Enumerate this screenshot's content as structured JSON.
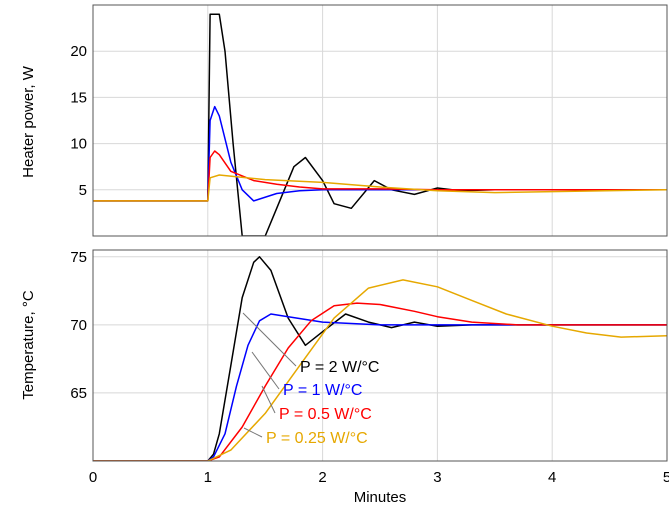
{
  "chart_data": [
    {
      "type": "line",
      "ylabel": "Heater power, W",
      "xlim": [
        0,
        5
      ],
      "ylim": [
        0,
        25
      ],
      "yticks": [
        5,
        10,
        15,
        20
      ],
      "grid": true,
      "series": [
        {
          "color": "#000000",
          "x": [
            0,
            1,
            1.02,
            1.1,
            1.15,
            1.22,
            1.3,
            1.5,
            1.6,
            1.75,
            1.85,
            2.0,
            2.1,
            2.25,
            2.45,
            2.6,
            2.8,
            3.0,
            3.2,
            3.5,
            4.0,
            5.0
          ],
          "y": [
            3.8,
            3.8,
            24,
            24,
            20,
            10,
            0,
            0,
            3,
            7.5,
            8.5,
            6,
            3.5,
            3,
            6,
            5,
            4.5,
            5.2,
            4.9,
            5,
            5,
            5
          ]
        },
        {
          "color": "#0000ff",
          "x": [
            0,
            1,
            1.02,
            1.06,
            1.1,
            1.2,
            1.3,
            1.4,
            1.6,
            1.8,
            2.0,
            2.5,
            3.0,
            5.0
          ],
          "y": [
            3.8,
            3.8,
            12.5,
            14,
            13,
            8,
            5,
            3.8,
            4.6,
            4.9,
            5,
            5,
            5,
            5
          ]
        },
        {
          "color": "#ff0000",
          "x": [
            0,
            1,
            1.02,
            1.06,
            1.1,
            1.2,
            1.4,
            1.6,
            1.8,
            2.0,
            2.5,
            3.0,
            5.0
          ],
          "y": [
            3.8,
            3.8,
            8.5,
            9.2,
            8.8,
            7,
            6,
            5.6,
            5.3,
            5.1,
            5.1,
            5,
            5
          ]
        },
        {
          "color": "#e6a800",
          "x": [
            0,
            1,
            1.02,
            1.1,
            1.5,
            2.0,
            2.5,
            3.0,
            3.5,
            4.0,
            5.0
          ],
          "y": [
            3.8,
            3.8,
            6.3,
            6.6,
            6.1,
            5.8,
            5.3,
            4.9,
            4.7,
            4.8,
            5
          ]
        }
      ]
    },
    {
      "type": "line",
      "xlabel": "Minutes",
      "ylabel": "Temperature, °C",
      "xlim": [
        0,
        5
      ],
      "ylim": [
        60,
        75.5
      ],
      "xticks": [
        0,
        1,
        2,
        3,
        4,
        5
      ],
      "yticks": [
        65,
        70,
        75
      ],
      "grid": true,
      "series": [
        {
          "name": "P = 2 W/°C",
          "color": "#000000",
          "x": [
            0,
            1,
            1.05,
            1.1,
            1.2,
            1.3,
            1.4,
            1.45,
            1.55,
            1.7,
            1.85,
            2.0,
            2.2,
            2.4,
            2.6,
            2.8,
            3.0,
            3.3,
            3.6,
            4.0,
            5.0
          ],
          "y": [
            60,
            60,
            60.5,
            62,
            67,
            72,
            74.6,
            75,
            74,
            70.5,
            68.5,
            69.5,
            70.8,
            70.2,
            69.8,
            70.2,
            69.9,
            70,
            70,
            70,
            70
          ]
        },
        {
          "name": "P = 1 W/°C",
          "color": "#0000ff",
          "x": [
            0,
            1,
            1.05,
            1.15,
            1.25,
            1.35,
            1.45,
            1.55,
            1.7,
            2.0,
            2.5,
            3.0,
            5.0
          ],
          "y": [
            60,
            60,
            60.3,
            62,
            65.5,
            68.5,
            70.3,
            70.8,
            70.6,
            70.2,
            70,
            70,
            70
          ]
        },
        {
          "name": "P = 0.5 W/°C",
          "color": "#ff0000",
          "x": [
            0,
            1,
            1.1,
            1.3,
            1.5,
            1.7,
            1.9,
            2.1,
            2.3,
            2.5,
            2.8,
            3.0,
            3.3,
            3.7,
            4.0,
            4.5,
            5.0
          ],
          "y": [
            60,
            60,
            60.3,
            62.5,
            65.5,
            68.3,
            70.3,
            71.4,
            71.6,
            71.5,
            71,
            70.6,
            70.2,
            70,
            70,
            70,
            70
          ]
        },
        {
          "name": "P = 0.25 W/°C",
          "color": "#e6a800",
          "x": [
            0,
            1,
            1.2,
            1.5,
            1.8,
            2.1,
            2.4,
            2.7,
            3.0,
            3.3,
            3.6,
            4.0,
            4.3,
            4.6,
            5.0
          ],
          "y": [
            60,
            60,
            60.8,
            63.5,
            67,
            70.5,
            72.7,
            73.3,
            72.8,
            71.8,
            70.8,
            69.9,
            69.4,
            69.1,
            69.2
          ]
        }
      ]
    }
  ]
}
